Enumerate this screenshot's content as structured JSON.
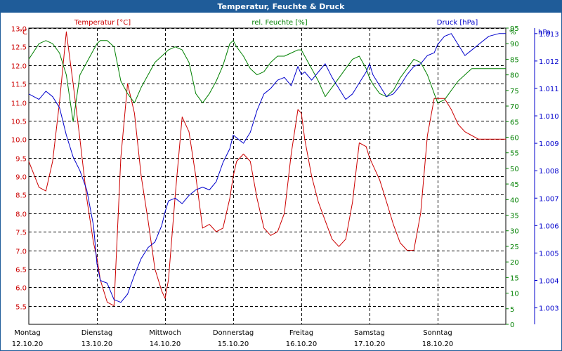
{
  "title": "Temperatur, Feuchte & Druck",
  "colors": {
    "temp": "#cc0000",
    "hum": "#008000",
    "press": "#0000cc",
    "title_bg": "#1f5c99",
    "grid": "#000000"
  },
  "chart_data": {
    "type": "line",
    "x_days": [
      {
        "name": "Montag",
        "date": "12.10.20"
      },
      {
        "name": "Dienstag",
        "date": "13.10.20"
      },
      {
        "name": "Mittwoch",
        "date": "14.10.20"
      },
      {
        "name": "Donnerstag",
        "date": "15.10.20"
      },
      {
        "name": "Freitag",
        "date": "16.10.20"
      },
      {
        "name": "Samstag",
        "date": "17.10.20"
      },
      {
        "name": "Sonntag",
        "date": "18.10.20"
      }
    ],
    "x": [
      0,
      0.15,
      0.25,
      0.35,
      0.45,
      0.55,
      0.65,
      0.75,
      0.85,
      0.95,
      1,
      1.05,
      1.15,
      1.25,
      1.35,
      1.45,
      1.55,
      1.65,
      1.75,
      1.85,
      1.95,
      2,
      2.05,
      2.15,
      2.25,
      2.35,
      2.45,
      2.55,
      2.65,
      2.75,
      2.85,
      2.95,
      3,
      3.05,
      3.15,
      3.25,
      3.35,
      3.45,
      3.55,
      3.65,
      3.75,
      3.85,
      3.95,
      4,
      4.05,
      4.15,
      4.25,
      4.35,
      4.45,
      4.55,
      4.65,
      4.75,
      4.85,
      4.95,
      5,
      5.05,
      5.15,
      5.25,
      5.35,
      5.45,
      5.55,
      5.65,
      5.75,
      5.85,
      5.95,
      6,
      6.1,
      6.2,
      6.3,
      6.4,
      6.5,
      6.6,
      6.75,
      6.9,
      7
    ],
    "series": [
      {
        "name": "Temperatur [°C]",
        "axis": "left",
        "values": [
          9.4,
          8.7,
          8.6,
          9.4,
          11.0,
          12.9,
          11.5,
          10.0,
          8.4,
          7.2,
          6.8,
          6.2,
          5.6,
          5.5,
          9.5,
          11.5,
          10.7,
          9.0,
          7.8,
          6.5,
          5.9,
          5.7,
          6.2,
          8.5,
          10.6,
          10.2,
          9.0,
          7.6,
          7.7,
          7.5,
          7.6,
          8.4,
          9.0,
          9.4,
          9.6,
          9.4,
          8.4,
          7.6,
          7.4,
          7.5,
          8.0,
          9.6,
          10.8,
          10.7,
          10.0,
          9.0,
          8.3,
          7.8,
          7.3,
          7.1,
          7.3,
          8.3,
          9.9,
          9.8,
          9.5,
          9.3,
          8.9,
          8.3,
          7.7,
          7.2,
          7.0,
          7.0,
          8.0,
          10.1,
          11.1,
          11.1,
          11.1,
          10.8,
          10.4,
          10.2,
          10.1,
          10.0,
          10.0,
          10.0,
          10.0
        ],
        "press_or_hum_values": []
      },
      {
        "name": "rel. Feuchte [%]",
        "axis": "right_inner",
        "values": [
          85,
          90,
          91,
          90,
          87,
          80,
          65,
          80,
          84,
          88,
          90,
          91,
          91,
          89,
          78,
          74,
          71,
          76,
          80,
          84,
          86,
          87,
          88,
          89,
          88,
          84,
          74,
          71,
          74,
          78,
          83,
          90,
          91,
          89,
          86,
          82,
          80,
          81,
          84,
          86,
          86,
          87,
          88,
          88,
          86,
          82,
          78,
          73,
          76,
          79,
          82,
          85,
          86,
          82,
          79,
          77,
          74,
          73,
          75,
          79,
          82,
          85,
          84,
          80,
          74,
          71,
          72,
          75,
          78,
          80,
          82,
          82,
          82,
          82,
          82
        ],
        "press_or_hum_values": []
      },
      {
        "name": "Druck [hPa]",
        "axis": "right_outer",
        "values": [
          1010.8,
          1010.6,
          1010.9,
          1010.7,
          1010.3,
          1009.3,
          1008.5,
          1008.0,
          1007.3,
          1006.0,
          1004.6,
          1004.0,
          1003.9,
          1003.3,
          1003.2,
          1003.5,
          1004.2,
          1004.8,
          1005.2,
          1005.4,
          1006.0,
          1006.5,
          1006.9,
          1007.0,
          1006.8,
          1007.1,
          1007.3,
          1007.4,
          1007.3,
          1007.6,
          1008.3,
          1008.8,
          1009.3,
          1009.2,
          1009.0,
          1009.4,
          1010.2,
          1010.8,
          1011.0,
          1011.3,
          1011.4,
          1011.1,
          1011.8,
          1011.5,
          1011.6,
          1011.3,
          1011.6,
          1011.9,
          1011.4,
          1011.0,
          1010.6,
          1010.8,
          1011.2,
          1011.6,
          1011.9,
          1011.5,
          1011.1,
          1010.7,
          1010.8,
          1011.1,
          1011.5,
          1011.8,
          1011.9,
          1012.2,
          1012.3,
          1012.6,
          1012.9,
          1013.0,
          1012.6,
          1012.2,
          1012.4,
          1012.6,
          1012.9,
          1013.0,
          1013.0
        ],
        "press_or_hum_values": []
      }
    ],
    "axes": {
      "left": {
        "unit": "°C",
        "min": 5.0,
        "max": 13.0,
        "ticks": [
          "5.5",
          "6.0",
          "6.5",
          "7.0",
          "7.5",
          "8.0",
          "8.5",
          "9.0",
          "9.5",
          "10.0",
          "10.5",
          "11.0",
          "11.5",
          "12.0",
          "12.5",
          "13.0"
        ],
        "tick_values": [
          5.5,
          6.0,
          6.5,
          7.0,
          7.5,
          8.0,
          8.5,
          9.0,
          9.5,
          10.0,
          10.5,
          11.0,
          11.5,
          12.0,
          12.5,
          13.0
        ]
      },
      "right_inner": {
        "unit": "%",
        "min": 0,
        "max": 95,
        "ticks": [
          "0",
          "5",
          "10",
          "15",
          "20",
          "25",
          "30",
          "35",
          "40",
          "45",
          "50",
          "55",
          "60",
          "65",
          "70",
          "75",
          "80",
          "85",
          "90",
          "95"
        ],
        "tick_values": [
          0,
          5,
          10,
          15,
          20,
          25,
          30,
          35,
          40,
          45,
          50,
          55,
          60,
          65,
          70,
          75,
          80,
          85,
          90,
          95
        ]
      },
      "right_outer": {
        "unit": "hPa",
        "min": 1002.4,
        "max": 1013.2,
        "ticks": [
          "1.003",
          "1.004",
          "1.005",
          "1.006",
          "1.007",
          "1.008",
          "1.009",
          "1.010",
          "1.011",
          "1.012",
          "1.013"
        ],
        "tick_values": [
          1003,
          1004,
          1005,
          1006,
          1007,
          1008,
          1009,
          1010,
          1011,
          1012,
          1013
        ]
      }
    },
    "legend": {
      "temp": "Temperatur [°C]",
      "hum": "rel. Feuchte [%]",
      "press": "Druck [hPa]"
    },
    "grid": true
  }
}
